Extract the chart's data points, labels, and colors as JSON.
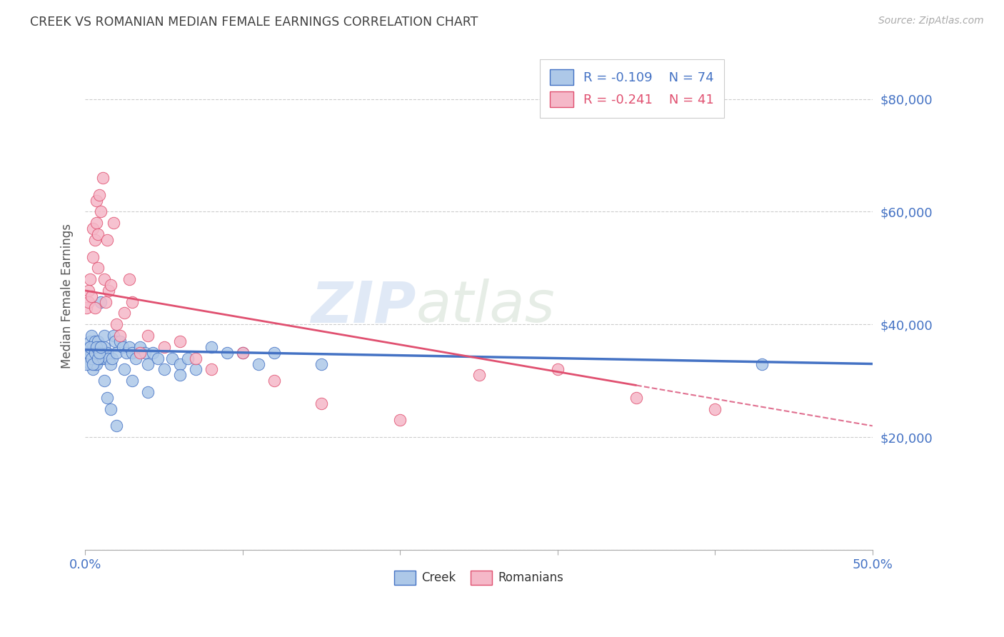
{
  "title": "CREEK VS ROMANIAN MEDIAN FEMALE EARNINGS CORRELATION CHART",
  "source_text": "Source: ZipAtlas.com",
  "ylabel": "Median Female Earnings",
  "xlim": [
    0.0,
    0.5
  ],
  "ylim": [
    0,
    90000
  ],
  "yticks": [
    0,
    20000,
    40000,
    60000,
    80000
  ],
  "ytick_labels_right": [
    "",
    "$20,000",
    "$40,000",
    "$60,000",
    "$80,000"
  ],
  "creek_R": -0.109,
  "creek_N": 74,
  "romanian_R": -0.241,
  "romanian_N": 41,
  "creek_color": "#adc8e8",
  "romanian_color": "#f5b8c8",
  "line_creek_color": "#4472c4",
  "line_romanian_color_solid": "#e05070",
  "line_romanian_color_dash": "#e07090",
  "watermark_zip": "ZIP",
  "watermark_atlas": "atlas",
  "background_color": "#ffffff",
  "grid_color": "#cccccc",
  "axis_label_color": "#4472c4",
  "title_color": "#404040",
  "creek_x": [
    0.001,
    0.002,
    0.002,
    0.003,
    0.003,
    0.004,
    0.004,
    0.005,
    0.005,
    0.005,
    0.006,
    0.006,
    0.006,
    0.007,
    0.007,
    0.007,
    0.008,
    0.008,
    0.009,
    0.009,
    0.01,
    0.01,
    0.011,
    0.012,
    0.012,
    0.013,
    0.014,
    0.015,
    0.016,
    0.017,
    0.018,
    0.019,
    0.02,
    0.022,
    0.024,
    0.026,
    0.028,
    0.03,
    0.032,
    0.035,
    0.038,
    0.04,
    0.043,
    0.046,
    0.05,
    0.055,
    0.06,
    0.065,
    0.07,
    0.08,
    0.09,
    0.1,
    0.11,
    0.12,
    0.001,
    0.002,
    0.003,
    0.004,
    0.005,
    0.006,
    0.007,
    0.008,
    0.009,
    0.01,
    0.012,
    0.014,
    0.016,
    0.02,
    0.025,
    0.03,
    0.04,
    0.06,
    0.15,
    0.43
  ],
  "creek_y": [
    35000,
    34000,
    36000,
    33000,
    37000,
    35000,
    38000,
    34000,
    36000,
    32000,
    35000,
    33000,
    37000,
    34000,
    36000,
    33000,
    35000,
    37000,
    34000,
    36000,
    44000,
    35000,
    34000,
    38000,
    36000,
    34000,
    35000,
    34000,
    33000,
    34000,
    38000,
    37000,
    35000,
    37000,
    36000,
    35000,
    36000,
    35000,
    34000,
    36000,
    35000,
    33000,
    35000,
    34000,
    32000,
    34000,
    33000,
    34000,
    32000,
    36000,
    35000,
    35000,
    33000,
    35000,
    33000,
    35000,
    36000,
    34000,
    33000,
    35000,
    36000,
    34000,
    35000,
    36000,
    30000,
    27000,
    25000,
    22000,
    32000,
    30000,
    28000,
    31000,
    33000,
    33000
  ],
  "romanian_x": [
    0.001,
    0.002,
    0.002,
    0.003,
    0.004,
    0.005,
    0.005,
    0.006,
    0.006,
    0.007,
    0.007,
    0.008,
    0.008,
    0.009,
    0.01,
    0.011,
    0.012,
    0.013,
    0.014,
    0.015,
    0.016,
    0.018,
    0.02,
    0.022,
    0.025,
    0.028,
    0.03,
    0.035,
    0.04,
    0.05,
    0.06,
    0.07,
    0.08,
    0.1,
    0.12,
    0.15,
    0.2,
    0.25,
    0.3,
    0.35,
    0.4
  ],
  "romanian_y": [
    43000,
    46000,
    44000,
    48000,
    45000,
    52000,
    57000,
    55000,
    43000,
    62000,
    58000,
    56000,
    50000,
    63000,
    60000,
    66000,
    48000,
    44000,
    55000,
    46000,
    47000,
    58000,
    40000,
    38000,
    42000,
    48000,
    44000,
    35000,
    38000,
    36000,
    37000,
    34000,
    32000,
    35000,
    30000,
    26000,
    23000,
    31000,
    32000,
    27000,
    25000
  ],
  "romanian_solid_cutoff": 0.35,
  "creek_line_y_at_0": 35500,
  "creek_line_y_at_50": 33000,
  "romanian_line_y_at_0": 46000,
  "romanian_line_y_at_50": 22000
}
